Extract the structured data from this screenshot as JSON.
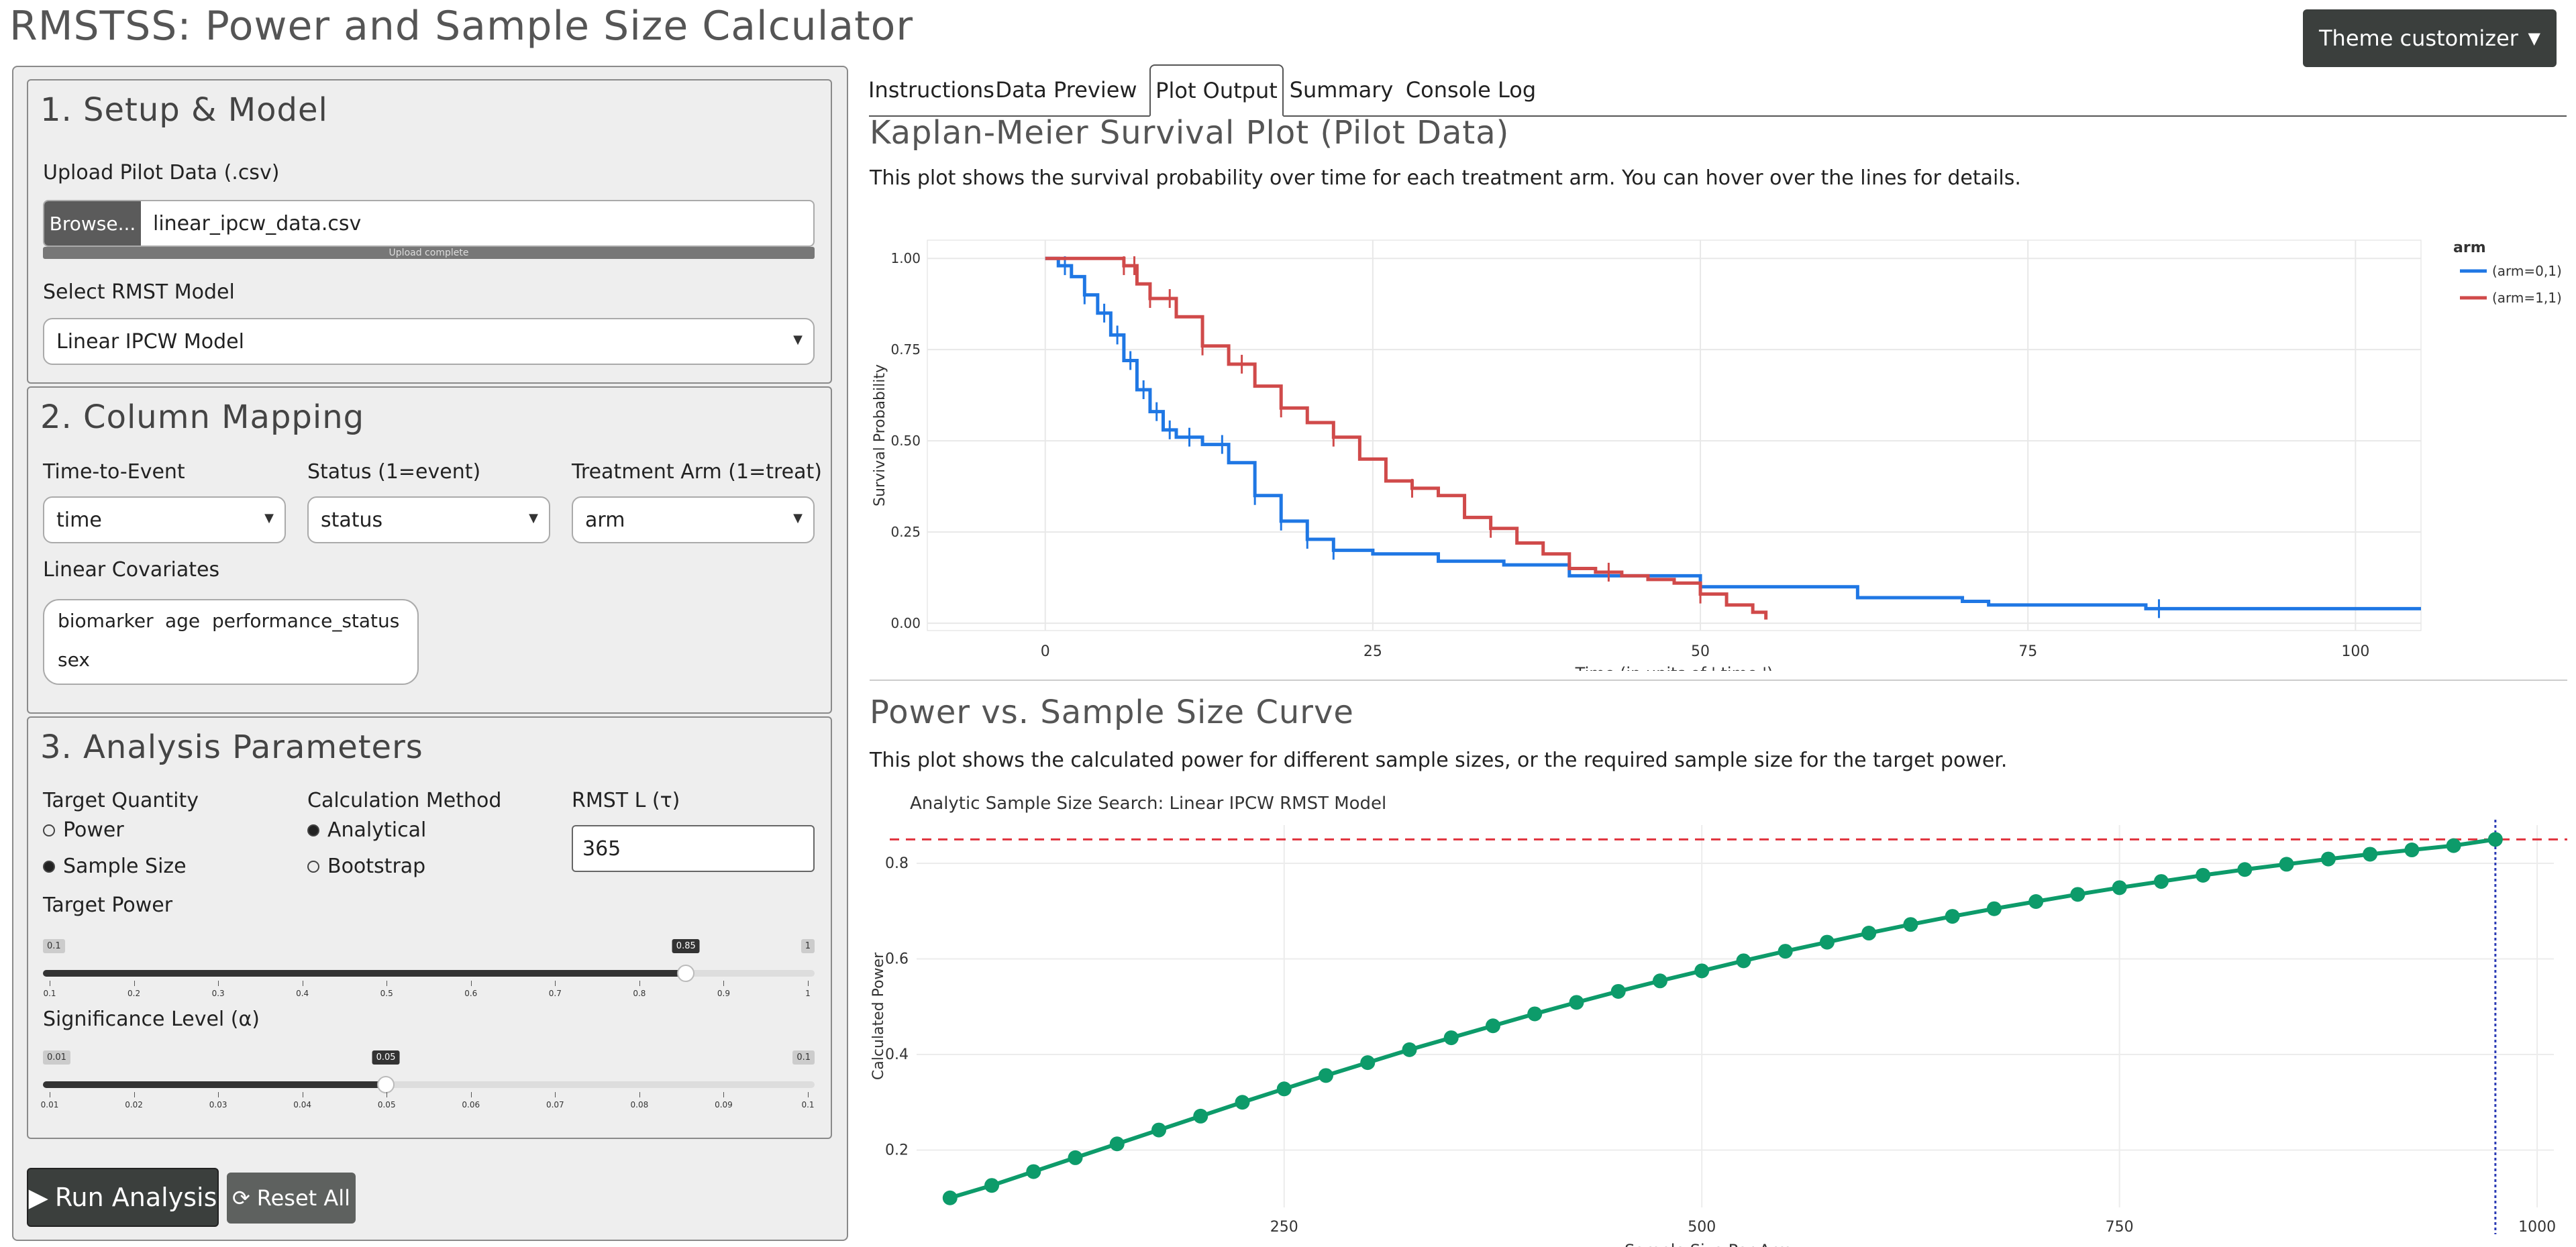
{
  "app": {
    "title": "RMSTSS: Power and Sample Size Calculator",
    "theme_button": "Theme customizer"
  },
  "setup": {
    "title": "1. Setup & Model",
    "upload_label": "Upload Pilot Data (.csv)",
    "browse_label": "Browse...",
    "file_name": "linear_ipcw_data.csv",
    "upload_status": "Upload complete",
    "model_label": "Select RMST Model",
    "model_value": "Linear IPCW Model"
  },
  "mapping": {
    "title": "2. Column Mapping",
    "time_label": "Time-to-Event",
    "time_value": "time",
    "status_label": "Status (1=event)",
    "status_value": "status",
    "arm_label": "Treatment Arm (1=treat)",
    "arm_value": "arm",
    "cov_label": "Linear Covariates",
    "covariates": [
      "biomarker",
      "age",
      "performance_status",
      "sex"
    ]
  },
  "analysis": {
    "title": "3. Analysis Parameters",
    "target_label": "Target Quantity",
    "target_options": [
      "Power",
      "Sample Size"
    ],
    "target_selected": "Sample Size",
    "method_label": "Calculation Method",
    "method_options": [
      "Analytical",
      "Bootstrap"
    ],
    "method_selected": "Analytical",
    "tau_label": "RMST L (τ)",
    "tau_value": "365",
    "power_label": "Target Power",
    "power_slider": {
      "min": "0.1",
      "max": "1",
      "value": "0.85",
      "fraction": 0.8333,
      "ticks": [
        "0.1",
        "0.2",
        "0.3",
        "0.4",
        "0.5",
        "0.6",
        "0.7",
        "0.8",
        "0.9",
        "1"
      ]
    },
    "alpha_label": "Significance Level (α)",
    "alpha_slider": {
      "min": "0.01",
      "max": "0.1",
      "value": "0.05",
      "fraction": 0.4444,
      "ticks": [
        "0.01",
        "0.02",
        "0.03",
        "0.04",
        "0.05",
        "0.06",
        "0.07",
        "0.08",
        "0.09",
        "0.1"
      ]
    }
  },
  "buttons": {
    "run": "Run Analysis",
    "reset": "Reset All"
  },
  "tabs": [
    "Instructions",
    "Data Preview",
    "Plot Output",
    "Summary",
    "Console Log"
  ],
  "active_tab": "Plot Output",
  "km_section": {
    "title": "Kaplan-Meier Survival Plot (Pilot Data)",
    "desc": "This plot shows the survival probability over time for each treatment arm. You can hover over the lines for details."
  },
  "power_section": {
    "title": "Power vs. Sample Size Curve",
    "desc": "This plot shows the calculated power for different sample sizes, or the required sample size for the target power."
  },
  "colors": {
    "arm0": "#1f77e4",
    "arm1": "#d04a4a",
    "power_curve": "#0d9b6a",
    "target_line": "#e0313c",
    "vline": "#2b3bb5"
  },
  "icons": {
    "run": "play-icon",
    "reset": "refresh-icon",
    "dropdown": "caret-down-icon"
  },
  "chart_data": [
    {
      "type": "line",
      "title": "",
      "xlabel": "Time (in units of ' time ')",
      "ylabel": "Survival Probability",
      "xlim": [
        -9,
        105
      ],
      "ylim": [
        -0.02,
        1.05
      ],
      "xticks": [
        0,
        25,
        50,
        75,
        100
      ],
      "yticks": [
        0.0,
        0.25,
        0.5,
        0.75,
        1.0
      ],
      "ytick_labels": [
        "0.00",
        "0.25",
        "0.50",
        "0.75",
        "1.00"
      ],
      "legend_title": "arm",
      "legend_position": "right",
      "grid": true,
      "step": true,
      "series": [
        {
          "name": "(arm=0,1)",
          "color": "#1f77e4",
          "x": [
            0,
            1,
            2,
            3,
            4,
            5,
            6,
            7,
            8,
            9,
            10,
            12,
            14,
            16,
            18,
            20,
            22,
            25,
            30,
            35,
            40,
            45,
            50,
            55,
            60,
            62,
            70,
            72,
            80,
            84,
            90,
            100,
            105
          ],
          "y": [
            1.0,
            0.98,
            0.95,
            0.9,
            0.85,
            0.79,
            0.72,
            0.64,
            0.58,
            0.53,
            0.51,
            0.49,
            0.44,
            0.35,
            0.28,
            0.23,
            0.2,
            0.19,
            0.17,
            0.16,
            0.13,
            0.13,
            0.1,
            0.1,
            0.1,
            0.07,
            0.06,
            0.05,
            0.05,
            0.04,
            0.04,
            0.04,
            0.04
          ],
          "censor_x": [
            1.5,
            3,
            4.5,
            5.5,
            6.5,
            7.5,
            8.5,
            9.5,
            11,
            13.5,
            16,
            18,
            20,
            22,
            85
          ]
        },
        {
          "name": "(arm=1,1)",
          "color": "#d04a4a",
          "x": [
            0,
            5,
            6,
            7,
            8,
            10,
            12,
            14,
            16,
            18,
            20,
            22,
            24,
            26,
            28,
            30,
            32,
            34,
            36,
            38,
            40,
            42,
            44,
            46,
            48,
            50,
            52,
            54,
            55
          ],
          "y": [
            1.0,
            1.0,
            0.98,
            0.93,
            0.89,
            0.84,
            0.76,
            0.71,
            0.65,
            0.59,
            0.55,
            0.51,
            0.45,
            0.39,
            0.37,
            0.35,
            0.29,
            0.26,
            0.22,
            0.19,
            0.15,
            0.14,
            0.13,
            0.12,
            0.11,
            0.08,
            0.05,
            0.03,
            0.01
          ],
          "censor_x": [
            6,
            6.8,
            8,
            9.5,
            12,
            15,
            18,
            22,
            28,
            34,
            43,
            50
          ]
        }
      ]
    },
    {
      "type": "line",
      "title": "Analytic Sample Size Search: Linear IPCW RMST Model",
      "xlabel": "Sample Size Per Arm",
      "ylabel": "Calculated Power",
      "xlim": [
        30,
        1010
      ],
      "ylim": [
        0.08,
        0.88
      ],
      "xticks": [
        250,
        500,
        750,
        1000
      ],
      "yticks": [
        0.2,
        0.4,
        0.6,
        0.8
      ],
      "grid": true,
      "target_power": 0.85,
      "required_n": 975,
      "series": [
        {
          "name": "Calculated Power",
          "color": "#0d9b6a",
          "x": [
            50,
            75,
            100,
            125,
            150,
            175,
            200,
            225,
            250,
            275,
            300,
            325,
            350,
            375,
            400,
            425,
            450,
            475,
            500,
            525,
            550,
            575,
            600,
            625,
            650,
            675,
            700,
            725,
            750,
            775,
            800,
            825,
            850,
            875,
            900,
            925,
            950,
            975
          ],
          "y": [
            0.1,
            0.126,
            0.155,
            0.184,
            0.213,
            0.242,
            0.271,
            0.3,
            0.328,
            0.356,
            0.383,
            0.41,
            0.435,
            0.46,
            0.485,
            0.509,
            0.532,
            0.554,
            0.575,
            0.596,
            0.616,
            0.635,
            0.654,
            0.672,
            0.689,
            0.705,
            0.72,
            0.735,
            0.749,
            0.762,
            0.775,
            0.787,
            0.798,
            0.809,
            0.819,
            0.828,
            0.837,
            0.85
          ]
        }
      ]
    }
  ]
}
